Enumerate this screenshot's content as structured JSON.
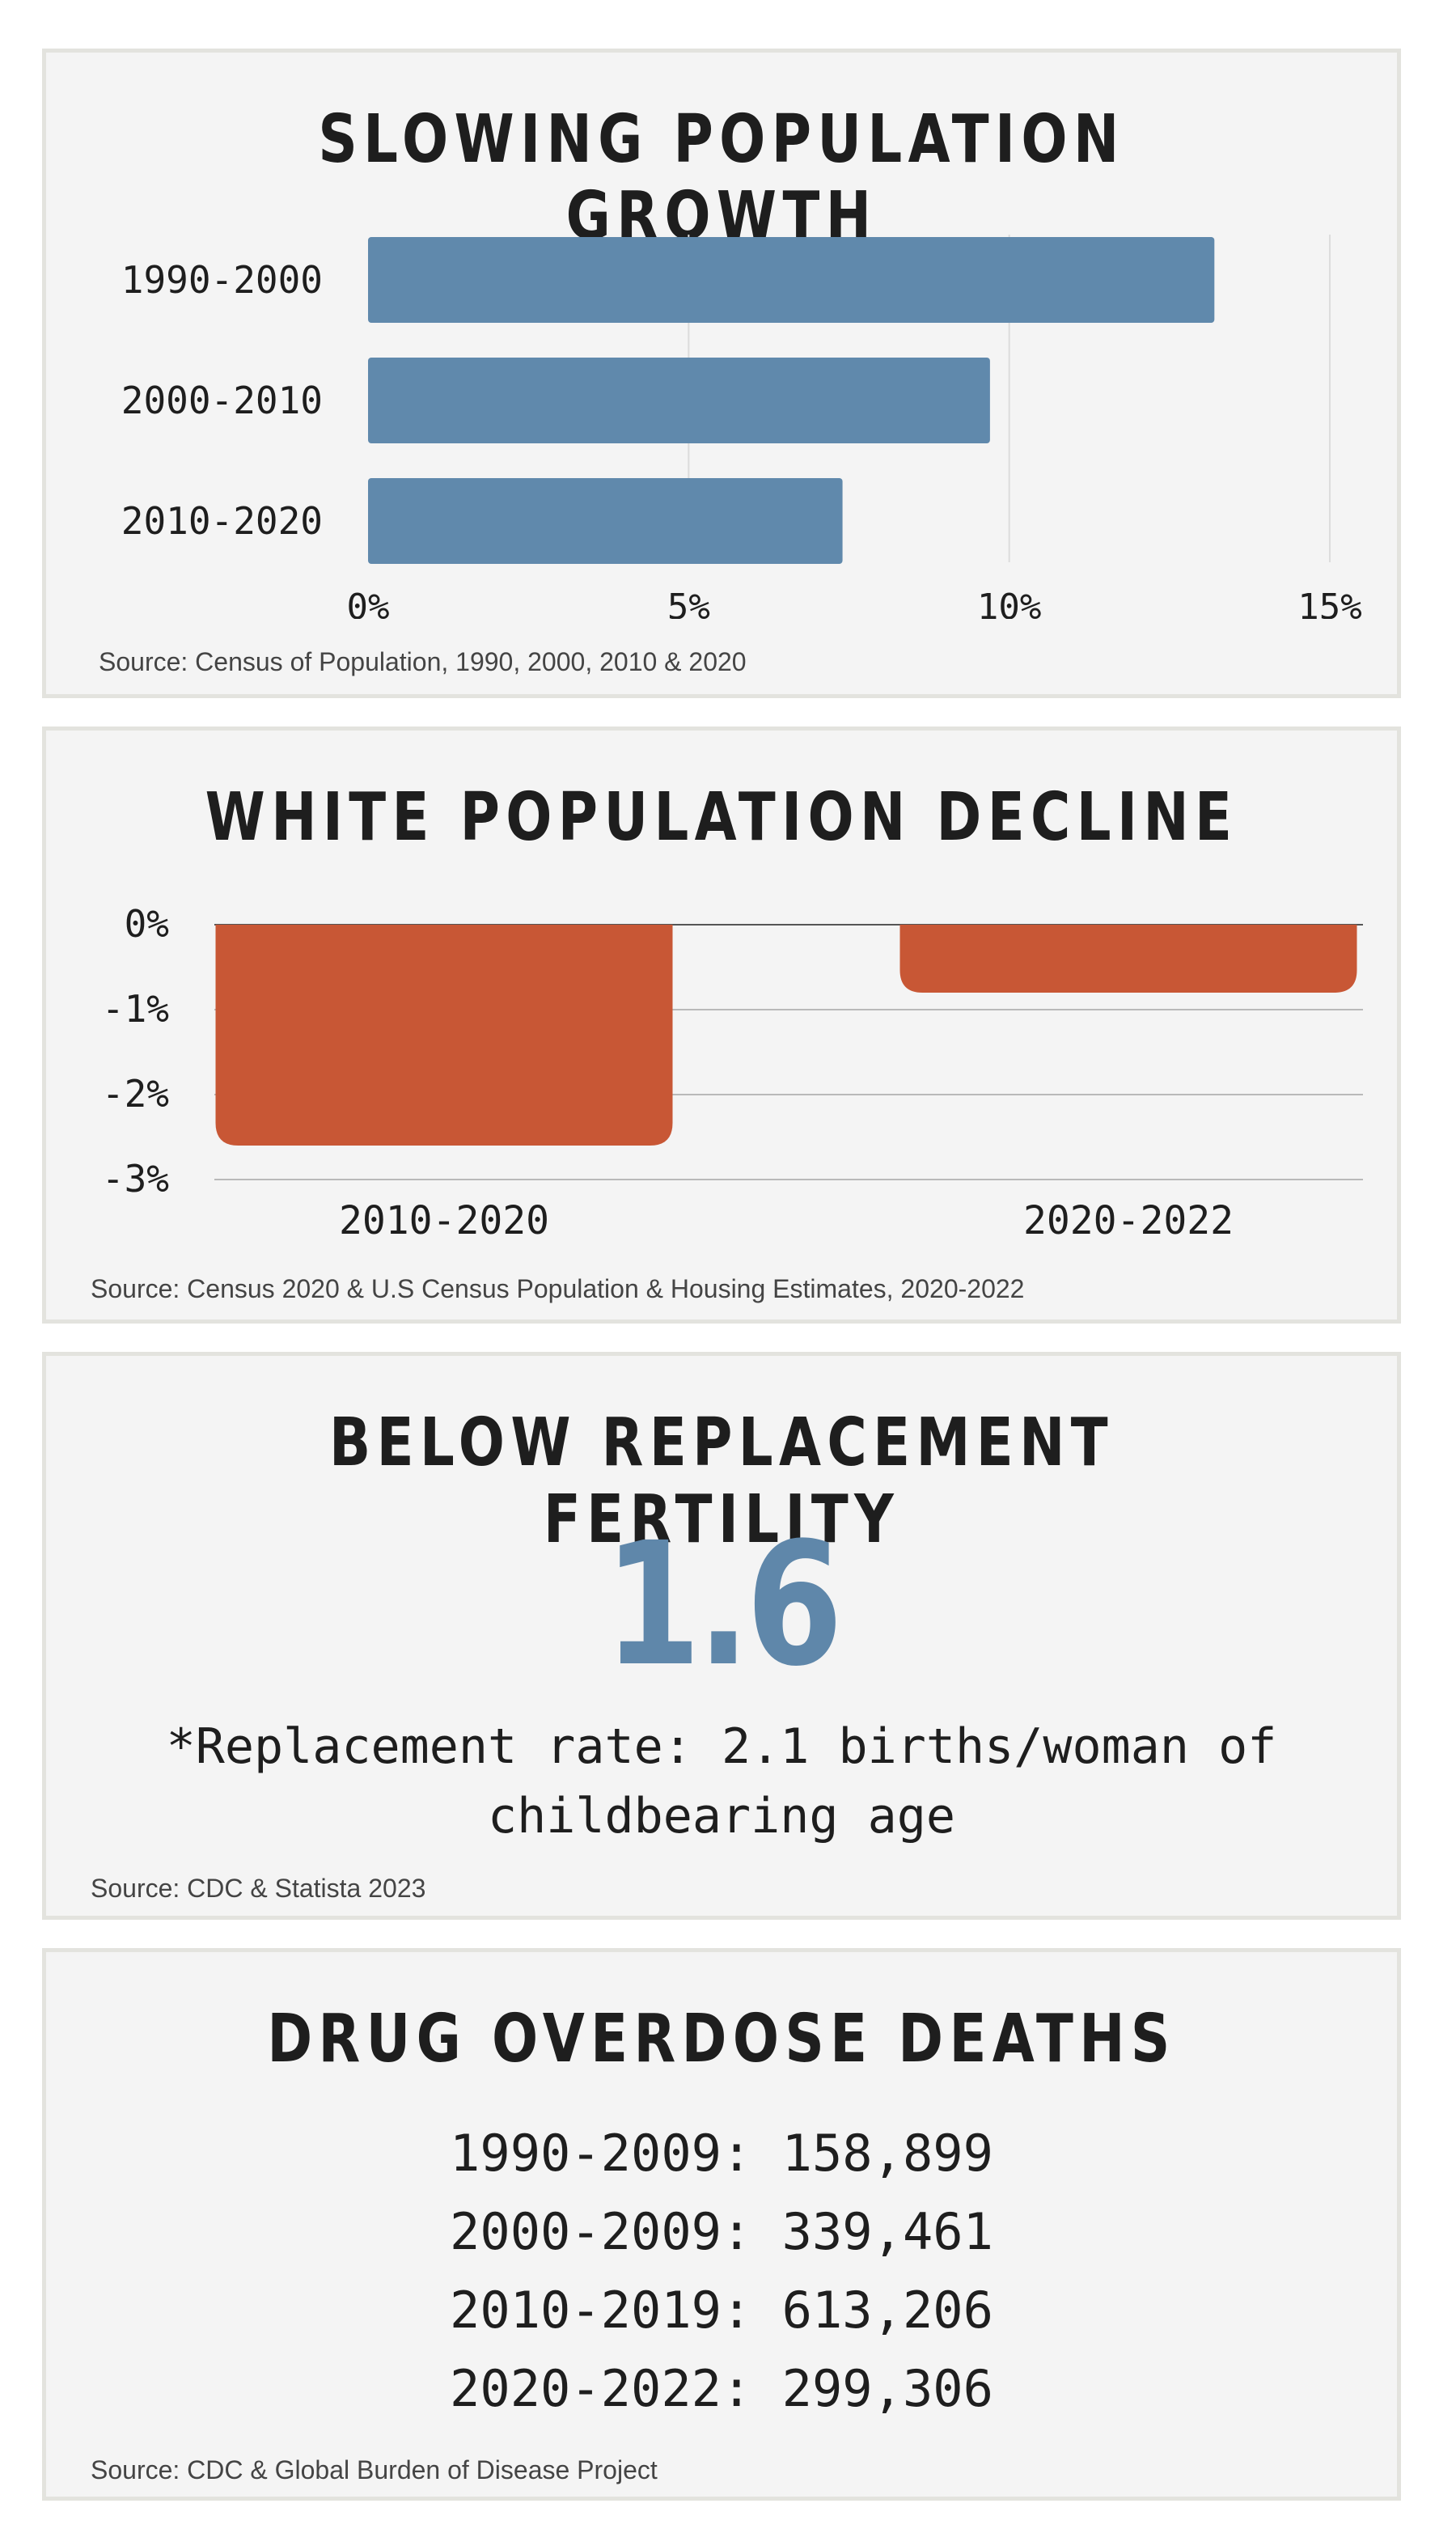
{
  "panels": {
    "growth": {
      "title": "SLOWING POPULATION GROWTH",
      "source": "Source: Census of Population, 1990, 2000, 2010 & 2020"
    },
    "decline": {
      "title": "WHITE POPULATION DECLINE",
      "source": "Source: Census 2020 & U.S Census Population & Housing Estimates, 2020-2022"
    },
    "fertility": {
      "title": "BELOW REPLACEMENT FERTILITY",
      "value": "1.6",
      "note_line1": "*Replacement rate: 2.1 births/woman of",
      "note_line2": "childbearing age",
      "source": "Source: CDC & Statista 2023"
    },
    "overdose": {
      "title": "DRUG OVERDOSE DEATHS",
      "items": [
        "1990-2009: 158,899",
        "2000-2009: 339,461",
        "2010-2019: 613,206",
        "2020-2022: 299,306"
      ],
      "source": "Source: CDC & Global Burden of Disease Project"
    }
  },
  "chart_data": [
    {
      "type": "bar",
      "orientation": "horizontal",
      "title": "SLOWING POPULATION GROWTH",
      "categories": [
        "1990-2000",
        "2000-2010",
        "2010-2020"
      ],
      "values": [
        13.2,
        9.7,
        7.4
      ],
      "xlim": [
        0,
        15
      ],
      "ticks": [
        0,
        5,
        10,
        15
      ],
      "tick_labels": [
        "0%",
        "5%",
        "10%",
        "15%"
      ],
      "grid": true,
      "color": "#6089ac"
    },
    {
      "type": "bar",
      "orientation": "vertical",
      "title": "WHITE POPULATION DECLINE",
      "categories": [
        "2010-2020",
        "2020-2022"
      ],
      "values": [
        -2.6,
        -0.8
      ],
      "ylim": [
        -3,
        0
      ],
      "ticks": [
        0,
        -1,
        -2,
        -3
      ],
      "tick_labels": [
        "0%",
        "-1%",
        "-2%",
        "-3%"
      ],
      "grid": true,
      "color": "#c85735"
    }
  ]
}
